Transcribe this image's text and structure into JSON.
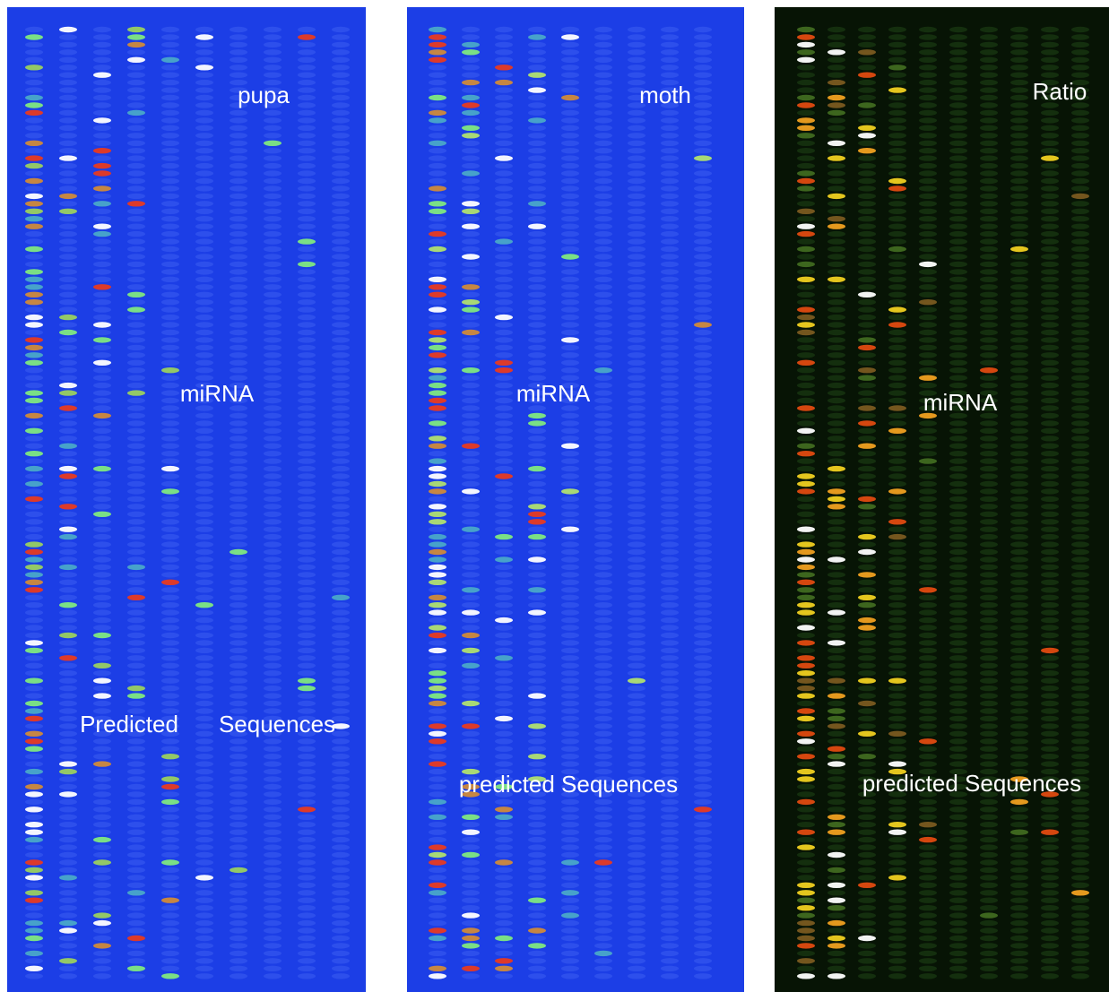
{
  "panels": [
    {
      "labels": [
        "pupa",
        "miRNA",
        "Predicted",
        "Sequences"
      ]
    },
    {
      "labels": [
        "moth",
        "miRNA",
        "predicted Sequences"
      ]
    },
    {
      "labels": [
        "Ratio",
        "miRNA",
        "predicted Sequences"
      ]
    }
  ]
}
